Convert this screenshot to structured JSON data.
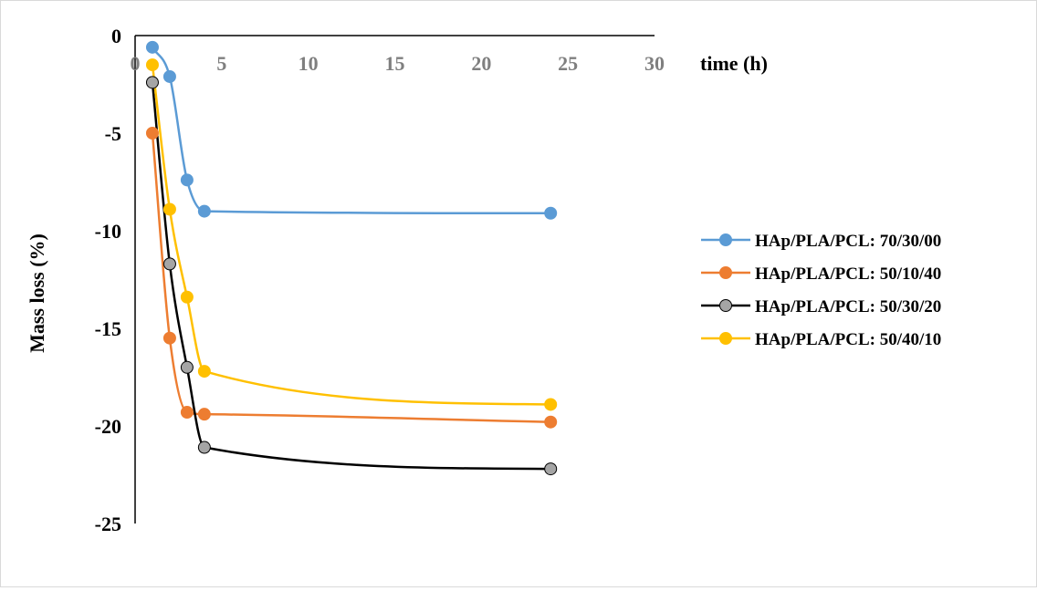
{
  "chart_data": {
    "type": "line",
    "title": "",
    "xlabel": "time (h)",
    "ylabel": "Mass loss (%)",
    "xlim": [
      0,
      30
    ],
    "ylim": [
      -25,
      0
    ],
    "xticks": [
      0,
      5,
      10,
      15,
      20,
      25,
      30
    ],
    "yticks": [
      0,
      -5,
      -10,
      -15,
      -20,
      -25
    ],
    "x_axis_position": "top",
    "grid": false,
    "smooth": true,
    "legend_position": "right",
    "series": [
      {
        "name": "HAp/PLA/PCL: 70/30/00",
        "color": "#5B9BD5",
        "marker_fill": "#5B9BD5",
        "line_color": "#5B9BD5",
        "x": [
          1,
          2,
          3,
          4,
          24
        ],
        "y": [
          -0.6,
          -2.1,
          -7.4,
          -9.0,
          -9.1
        ]
      },
      {
        "name": "HAp/PLA/PCL: 50/10/40",
        "color": "#ED7D31",
        "marker_fill": "#ED7D31",
        "line_color": "#ED7D31",
        "x": [
          1,
          2,
          3,
          4,
          24
        ],
        "y": [
          -5.0,
          -15.5,
          -19.3,
          -19.4,
          -19.8
        ]
      },
      {
        "name": "HAp/PLA/PCL: 50/30/20",
        "color": "#000000",
        "marker_fill": "#A5A5A5",
        "line_color": "#000000",
        "x": [
          1,
          2,
          3,
          4,
          24
        ],
        "y": [
          -2.4,
          -11.7,
          -17.0,
          -21.1,
          -22.2
        ]
      },
      {
        "name": "HAp/PLA/PCL: 50/40/10",
        "color": "#FFC000",
        "marker_fill": "#FFC000",
        "line_color": "#FFC000",
        "x": [
          1,
          2,
          3,
          4,
          24
        ],
        "y": [
          -1.5,
          -8.9,
          -13.4,
          -17.2,
          -18.9
        ]
      }
    ]
  }
}
